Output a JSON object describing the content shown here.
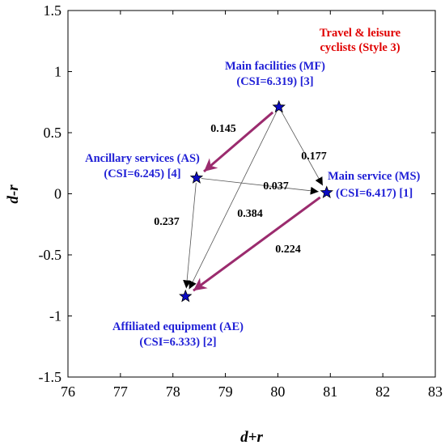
{
  "chart_data": {
    "type": "scatter",
    "title": "",
    "xlabel": "d+r",
    "ylabel": "d-r",
    "xlim": [
      76,
      83
    ],
    "ylim": [
      -1.5,
      1.5
    ],
    "xticks": [
      "76",
      "77",
      "78",
      "79",
      "80",
      "81",
      "82",
      "83"
    ],
    "yticks": [
      "1.5",
      "1",
      "0.5",
      "0",
      "-0.5",
      "-1",
      "-1.5"
    ],
    "grid": false,
    "annotation": {
      "line1": "Travel & leisure",
      "line2": "cyclists  (Style 3)",
      "color": "#e00000"
    },
    "points": [
      {
        "id": "MF",
        "x": 80.02,
        "y": 0.71,
        "line1": "Main facilities (MF)",
        "line2": "(CSI=6.319) [3]"
      },
      {
        "id": "AS",
        "x": 78.45,
        "y": 0.13,
        "line1": "Ancillary services (AS)",
        "line2": "(CSI=6.245) [4]"
      },
      {
        "id": "MS",
        "x": 80.93,
        "y": 0.01,
        "line1": "Main service (MS)",
        "line2": "(CSI=6.417) [1]"
      },
      {
        "id": "AE",
        "x": 78.24,
        "y": -0.84,
        "line1": "Affiliated equipment (AE)",
        "line2": "(CSI=6.333) [2]"
      }
    ],
    "edges": [
      {
        "from": "MF",
        "to": "AS",
        "value": "0.145",
        "style": "strong"
      },
      {
        "from": "MF",
        "to": "MS",
        "value": "0.177",
        "style": "thin"
      },
      {
        "from": "AS",
        "to": "MS",
        "value": "0.037",
        "style": "thin"
      },
      {
        "from": "MF",
        "to": "AE",
        "value": "0.384",
        "style": "thin"
      },
      {
        "from": "AS",
        "to": "AE",
        "value": "0.237",
        "style": "thin"
      },
      {
        "from": "MS",
        "to": "AE",
        "value": "0.224",
        "style": "strong"
      }
    ],
    "colors": {
      "marker": "#0b0bc4",
      "point_label": "#1f1fd6",
      "strong_arrow": "#9b2b6e",
      "thin_arrow": "#555555"
    }
  }
}
